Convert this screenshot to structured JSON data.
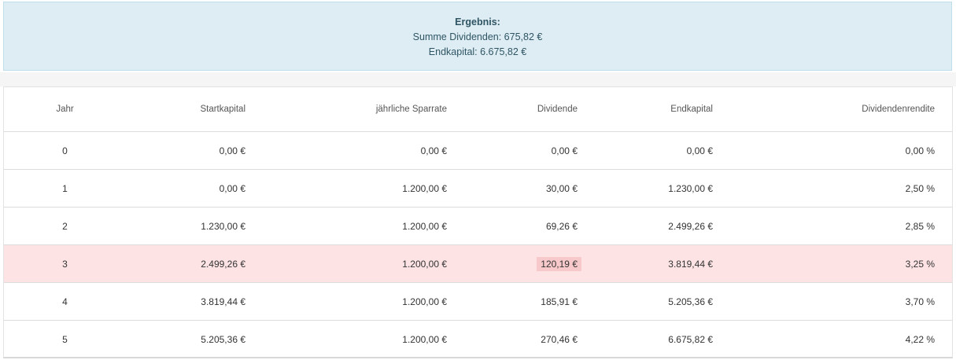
{
  "result": {
    "title": "Ergebnis:",
    "sum_dividends": "Summe Dividenden: 675,82 €",
    "end_capital": "Endkapital: 6.675,82 €"
  },
  "table": {
    "headers": {
      "year": "Jahr",
      "start": "Startkapital",
      "savings": "jährliche Sparrate",
      "dividend": "Dividende",
      "end": "Endkapital",
      "yield": "Dividendenrendite"
    },
    "rows": [
      {
        "year": "0",
        "start": "0,00 €",
        "savings": "0,00 €",
        "dividend": "0,00 €",
        "end": "0,00 €",
        "yield": "0,00 %"
      },
      {
        "year": "1",
        "start": "0,00 €",
        "savings": "1.200,00 €",
        "dividend": "30,00 €",
        "end": "1.230,00 €",
        "yield": "2,50 %"
      },
      {
        "year": "2",
        "start": "1.230,00 €",
        "savings": "1.200,00 €",
        "dividend": "69,26 €",
        "end": "2.499,26 €",
        "yield": "2,85 %"
      },
      {
        "year": "3",
        "start": "2.499,26 €",
        "savings": "1.200,00 €",
        "dividend": "120,19 €",
        "end": "3.819,44 €",
        "yield": "3,25 %"
      },
      {
        "year": "4",
        "start": "3.819,44 €",
        "savings": "1.200,00 €",
        "dividend": "185,91 €",
        "end": "5.205,36 €",
        "yield": "3,70 %"
      },
      {
        "year": "5",
        "start": "5.205,36 €",
        "savings": "1.200,00 €",
        "dividend": "270,46 €",
        "end": "6.675,82 €",
        "yield": "4,22 %"
      }
    ],
    "highlight_row_color": "#fde3e4",
    "highlight_cell_color": "#f8c9cb"
  }
}
